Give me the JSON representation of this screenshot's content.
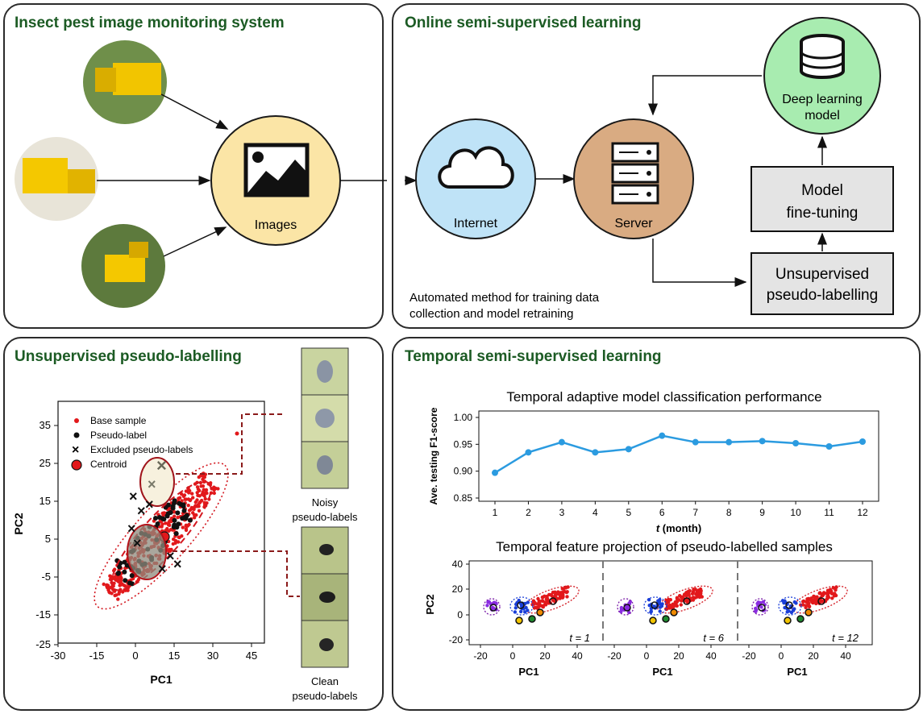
{
  "panels": {
    "monitoring": {
      "title": "Insect pest image monitoring system",
      "images_label": "Images"
    },
    "online": {
      "title": "Online semi-supervised learning",
      "internet_label": "Internet",
      "server_label": "Server",
      "model_label_1": "Deep learning",
      "model_label_2": "model",
      "finetune_label_1": "Model",
      "finetune_label_2": "fine-tuning",
      "pseudo_label_1": "Unsupervised",
      "pseudo_label_2": "pseudo-labelling",
      "note_line_1": "Automated method for training data",
      "note_line_2": "collection and model retraining"
    },
    "pseudo": {
      "title": "Unsupervised pseudo-labelling",
      "legend": [
        "Base sample",
        "Pseudo-label",
        "Excluded pseudo-labels",
        "Centroid"
      ],
      "noisy_label_1": "Noisy",
      "noisy_label_2": "pseudo-labels",
      "clean_label_1": "Clean",
      "clean_label_2": "pseudo-labels"
    },
    "temporal": {
      "title": "Temporal semi-supervised learning"
    }
  },
  "colors": {
    "title_green": "#1c5b24",
    "image_circle": "#fbe5a6",
    "internet_circle": "#bfe3f7",
    "server_circle": "#d9ab82",
    "model_circle": "#a8ecb0",
    "line_blue": "#2b9be0",
    "base_red": "#e2181b"
  },
  "icons": [
    "picture-icon",
    "cloud-icon",
    "server-icon",
    "database-icon"
  ],
  "chart_data": [
    {
      "type": "line",
      "title": "Temporal adaptive model classification performance",
      "xlabel": "t (month)",
      "ylabel": "Ave. testing F1-score",
      "x": [
        1,
        2,
        3,
        4,
        5,
        6,
        7,
        8,
        9,
        10,
        11,
        12
      ],
      "values": [
        0.897,
        0.935,
        0.954,
        0.935,
        0.941,
        0.966,
        0.954,
        0.954,
        0.956,
        0.952,
        0.946,
        0.955
      ],
      "ylim": [
        0.85,
        1.0
      ],
      "yticks": [
        "0.85",
        "0.90",
        "0.95",
        "1.00"
      ],
      "xticks": [
        "1",
        "2",
        "3",
        "4",
        "5",
        "6",
        "7",
        "8",
        "9",
        "10",
        "11",
        "12"
      ]
    },
    {
      "type": "scatter",
      "title": "Temporal feature projection of pseudo-labelled samples",
      "xlabel": "PC1",
      "ylabel": "PC2",
      "xticks": [
        "-20",
        "0",
        "20",
        "40"
      ],
      "yticks": [
        "40",
        "20",
        "0",
        "-20"
      ],
      "facets": [
        "t = 1",
        "t = 6",
        "t = 12"
      ]
    },
    {
      "type": "scatter",
      "xlabel": "PC1",
      "ylabel": "PC2",
      "xticks": [
        "-30",
        "-15",
        "0",
        "15",
        "30",
        "45"
      ],
      "yticks": [
        "35",
        "25",
        "15",
        "5",
        "-5",
        "-15",
        "-25"
      ]
    }
  ]
}
